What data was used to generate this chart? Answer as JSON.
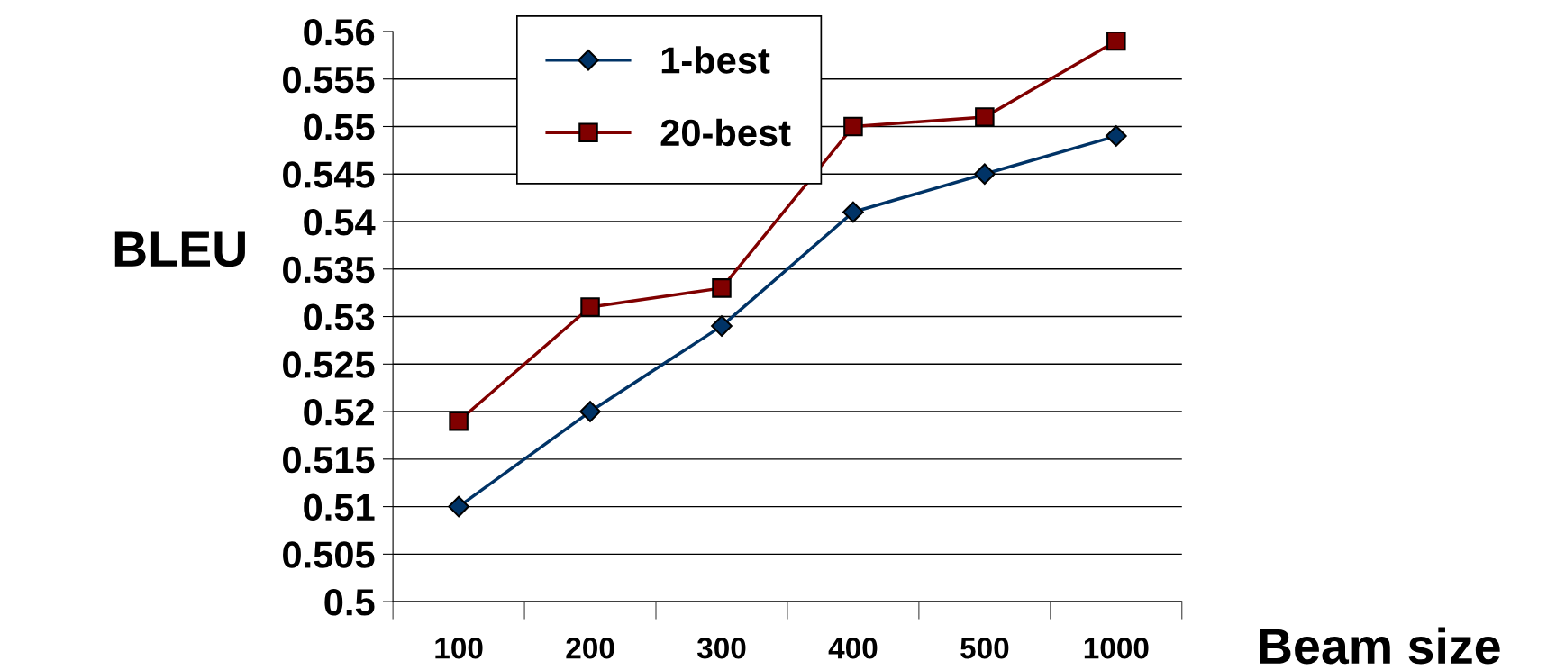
{
  "chart_data": {
    "type": "line",
    "xlabel": "Beam size",
    "ylabel": "BLEU",
    "categories": [
      "100",
      "200",
      "300",
      "400",
      "500",
      "1000"
    ],
    "series": [
      {
        "name": "1-best",
        "color": "#003366",
        "marker": "diamond",
        "values": [
          0.51,
          0.52,
          0.529,
          0.541,
          0.545,
          0.549
        ]
      },
      {
        "name": "20-best",
        "color": "#800000",
        "marker": "square",
        "values": [
          0.519,
          0.531,
          0.533,
          0.55,
          0.551,
          0.559
        ]
      }
    ],
    "ylim": [
      0.5,
      0.56
    ],
    "yticks": [
      0.5,
      0.505,
      0.51,
      0.515,
      0.52,
      0.525,
      0.53,
      0.535,
      0.54,
      0.545,
      0.55,
      0.555,
      0.56
    ],
    "grid": "y",
    "legend": "top",
    "line_style": "solid"
  }
}
